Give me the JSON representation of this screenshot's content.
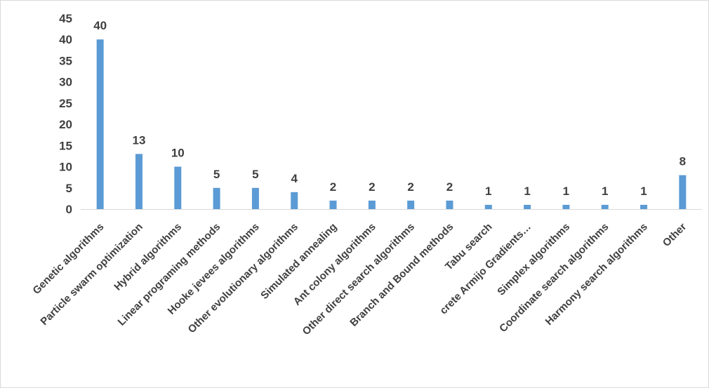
{
  "chart_data": {
    "type": "bar",
    "title": "",
    "xlabel": "",
    "ylabel": "",
    "ylim": [
      0,
      45
    ],
    "yticks": [
      0,
      5,
      10,
      15,
      20,
      25,
      30,
      35,
      40,
      45
    ],
    "grid": false,
    "legend": "none",
    "bar_color": "#5b9bd5",
    "categories": [
      "Genetic algorithms",
      "Particle swarm optimization",
      "Hybrid algorithms",
      "Linear programing methods",
      "Hooke jevees algorithms",
      "Other evolutionary algorithms",
      "Simulated annealing",
      "Ant colony algorithms",
      "Other direct search algorithms",
      "Branch and Bound methods",
      "Tabu search",
      "crete Armijo Gradients…",
      "Simplex algorithms",
      "Coordinate search algorithms",
      "Harmony search algorithms",
      "Other"
    ],
    "values": [
      40,
      13,
      10,
      5,
      5,
      4,
      2,
      2,
      2,
      2,
      1,
      1,
      1,
      1,
      1,
      8
    ],
    "data_labels": [
      "40",
      "13",
      "10",
      "5",
      "5",
      "4",
      "2",
      "2",
      "2",
      "2",
      "1",
      "1",
      "1",
      "1",
      "1",
      "8"
    ]
  }
}
